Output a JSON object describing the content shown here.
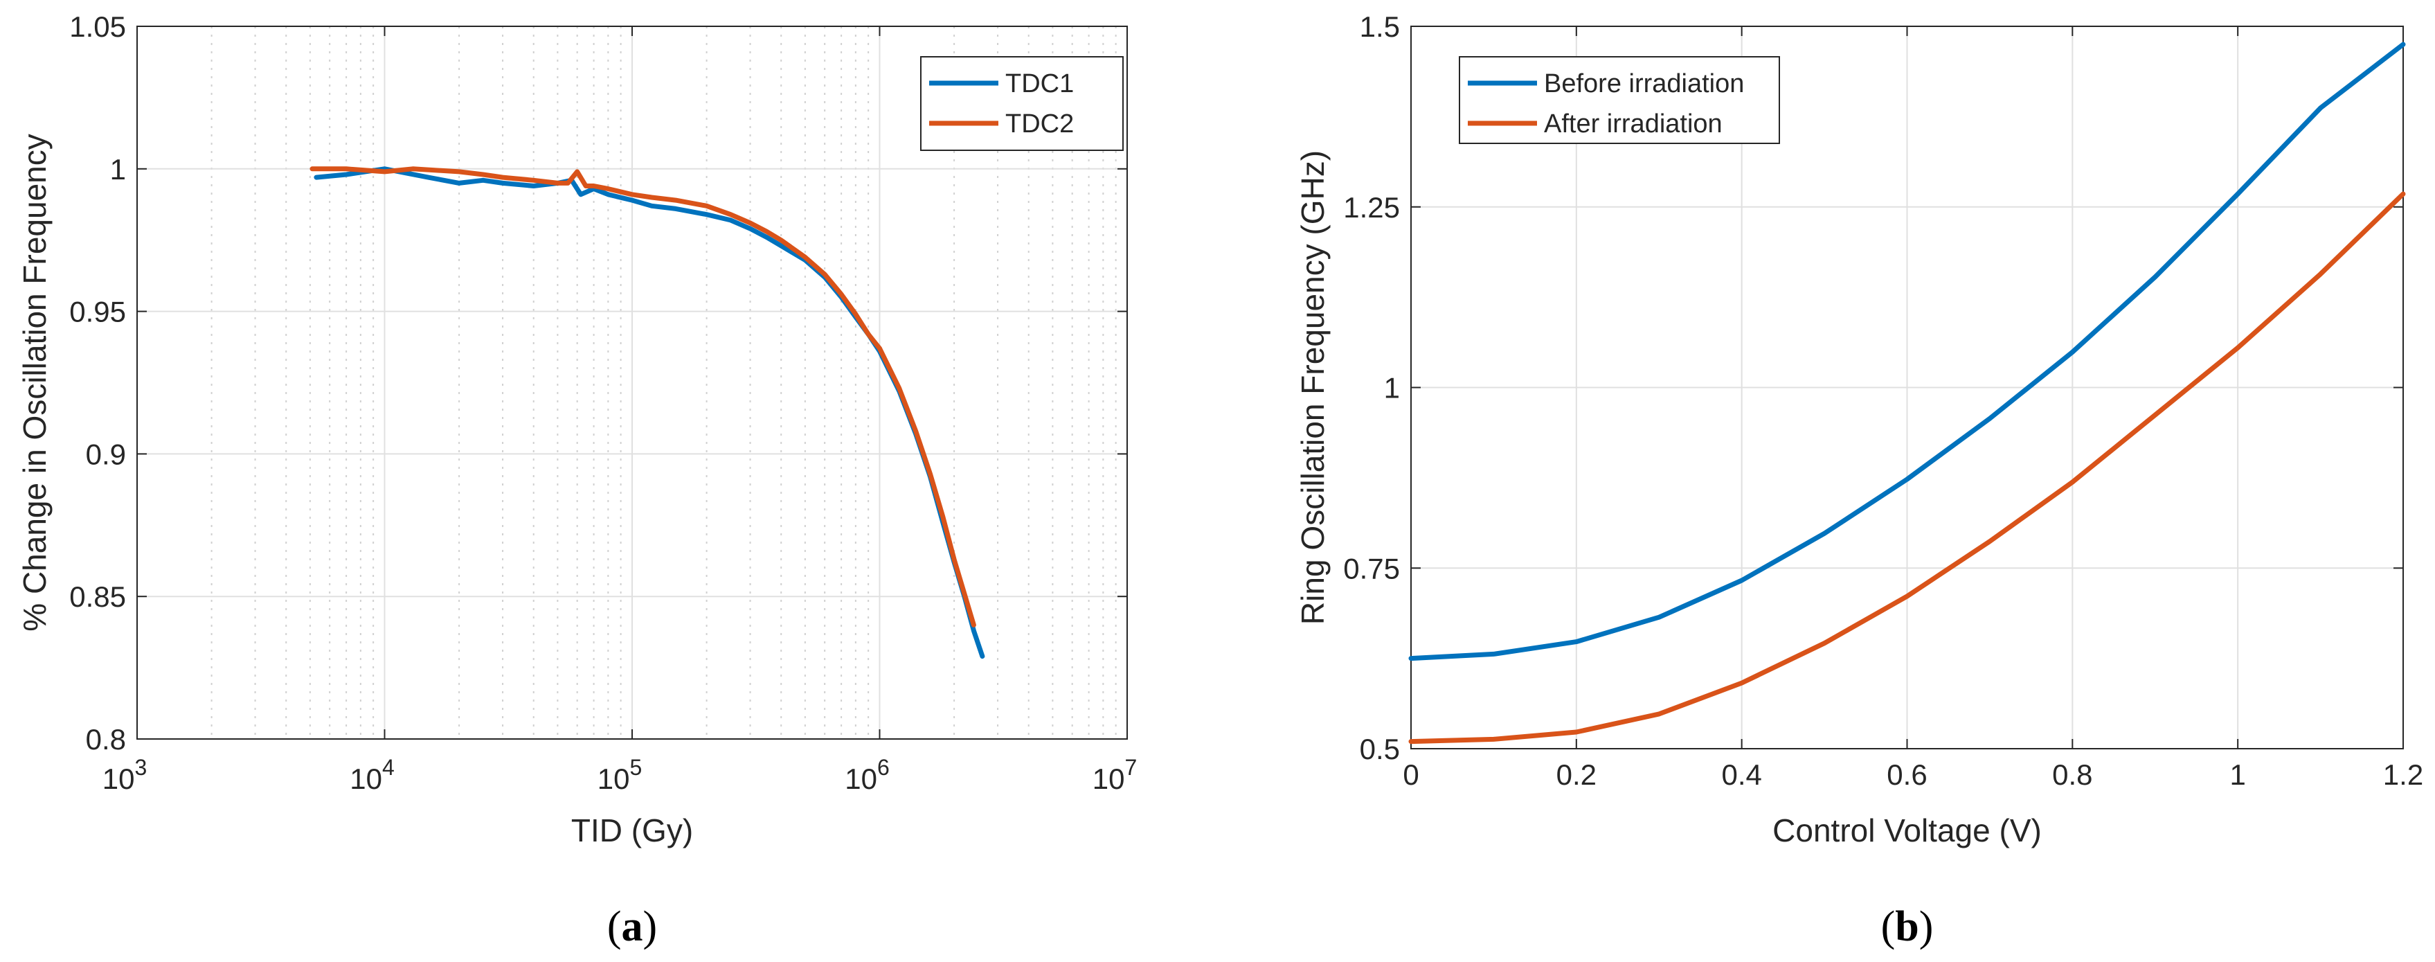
{
  "colors": {
    "blue": "#0072BD",
    "orange": "#D95319"
  },
  "chart_data": [
    {
      "type": "line",
      "caption": "(a)",
      "caption_letter": "a",
      "xscale": "log",
      "xlabel": "TID (Gy)",
      "ylabel": "% Change in Oscillation Frequency",
      "xlim": [
        1000,
        10000000
      ],
      "ylim": [
        0.8,
        1.05
      ],
      "x_ticks": [
        1000,
        10000,
        100000,
        1000000,
        10000000
      ],
      "x_tick_base": "10",
      "x_tick_exps": [
        "3",
        "4",
        "5",
        "6",
        "7"
      ],
      "y_ticks": [
        0.8,
        0.85,
        0.9,
        0.95,
        1.0,
        1.05
      ],
      "y_tick_labels": [
        "0.8",
        "0.85",
        "0.9",
        "0.95",
        "1",
        "1.05"
      ],
      "grid": true,
      "legend_position": "top-right",
      "series": [
        {
          "name": "TDC1",
          "color": "#0072BD",
          "x": [
            5300,
            7000,
            10000,
            15000,
            20000,
            25000,
            30000,
            40000,
            50000,
            57000,
            62000,
            70000,
            80000,
            100000,
            120000,
            150000,
            200000,
            250000,
            300000,
            350000,
            400000,
            500000,
            600000,
            700000,
            800000,
            900000,
            1000000,
            1200000,
            1400000,
            1600000,
            1800000,
            2000000,
            2200000,
            2400000,
            2600000
          ],
          "y": [
            0.997,
            0.998,
            1.0,
            0.997,
            0.995,
            0.996,
            0.995,
            0.994,
            0.995,
            0.996,
            0.991,
            0.993,
            0.991,
            0.989,
            0.987,
            0.986,
            0.984,
            0.982,
            0.979,
            0.976,
            0.973,
            0.968,
            0.962,
            0.955,
            0.948,
            0.942,
            0.936,
            0.922,
            0.907,
            0.892,
            0.876,
            0.862,
            0.85,
            0.838,
            0.829
          ]
        },
        {
          "name": "TDC2",
          "color": "#D95319",
          "x": [
            5100,
            7000,
            10000,
            13000,
            20000,
            25000,
            30000,
            40000,
            50000,
            55000,
            60000,
            65000,
            70000,
            80000,
            100000,
            120000,
            150000,
            200000,
            250000,
            300000,
            350000,
            400000,
            500000,
            600000,
            700000,
            800000,
            900000,
            1000000,
            1200000,
            1400000,
            1600000,
            1800000,
            2000000,
            2200000,
            2400000
          ],
          "y": [
            1.0,
            1.0,
            0.999,
            1.0,
            0.999,
            0.998,
            0.997,
            0.996,
            0.995,
            0.995,
            0.999,
            0.994,
            0.994,
            0.993,
            0.991,
            0.99,
            0.989,
            0.987,
            0.984,
            0.981,
            0.978,
            0.975,
            0.969,
            0.963,
            0.956,
            0.949,
            0.942,
            0.937,
            0.923,
            0.908,
            0.893,
            0.878,
            0.863,
            0.851,
            0.84
          ]
        }
      ]
    },
    {
      "type": "line",
      "caption": "(b)",
      "caption_letter": "b",
      "xscale": "linear",
      "xlabel": "Control Voltage (V)",
      "ylabel": "Ring Oscillation Frequency (GHz)",
      "xlim": [
        0,
        1.2
      ],
      "ylim": [
        0.5,
        1.5
      ],
      "x_ticks": [
        0,
        0.2,
        0.4,
        0.6,
        0.8,
        1.0,
        1.2
      ],
      "x_tick_labels": [
        "0",
        "0.2",
        "0.4",
        "0.6",
        "0.8",
        "1",
        "1.2"
      ],
      "y_ticks": [
        0.5,
        0.75,
        1.0,
        1.25,
        1.5
      ],
      "y_tick_labels": [
        "0.5",
        "0.75",
        "1",
        "1.25",
        "1.5"
      ],
      "grid": true,
      "legend_position": "top-left",
      "series": [
        {
          "name": "Before irradiation",
          "color": "#0072BD",
          "x": [
            0,
            0.1,
            0.2,
            0.3,
            0.4,
            0.5,
            0.6,
            0.7,
            0.8,
            0.9,
            1.0,
            1.1,
            1.2
          ],
          "y": [
            0.625,
            0.631,
            0.648,
            0.682,
            0.733,
            0.798,
            0.873,
            0.957,
            1.049,
            1.153,
            1.268,
            1.387,
            1.475
          ]
        },
        {
          "name": "After irradiation",
          "color": "#D95319",
          "x": [
            0,
            0.1,
            0.2,
            0.3,
            0.4,
            0.5,
            0.6,
            0.7,
            0.8,
            0.9,
            1.0,
            1.1,
            1.2
          ],
          "y": [
            0.51,
            0.513,
            0.523,
            0.548,
            0.591,
            0.646,
            0.711,
            0.787,
            0.869,
            0.962,
            1.055,
            1.157,
            1.268
          ]
        }
      ]
    }
  ]
}
